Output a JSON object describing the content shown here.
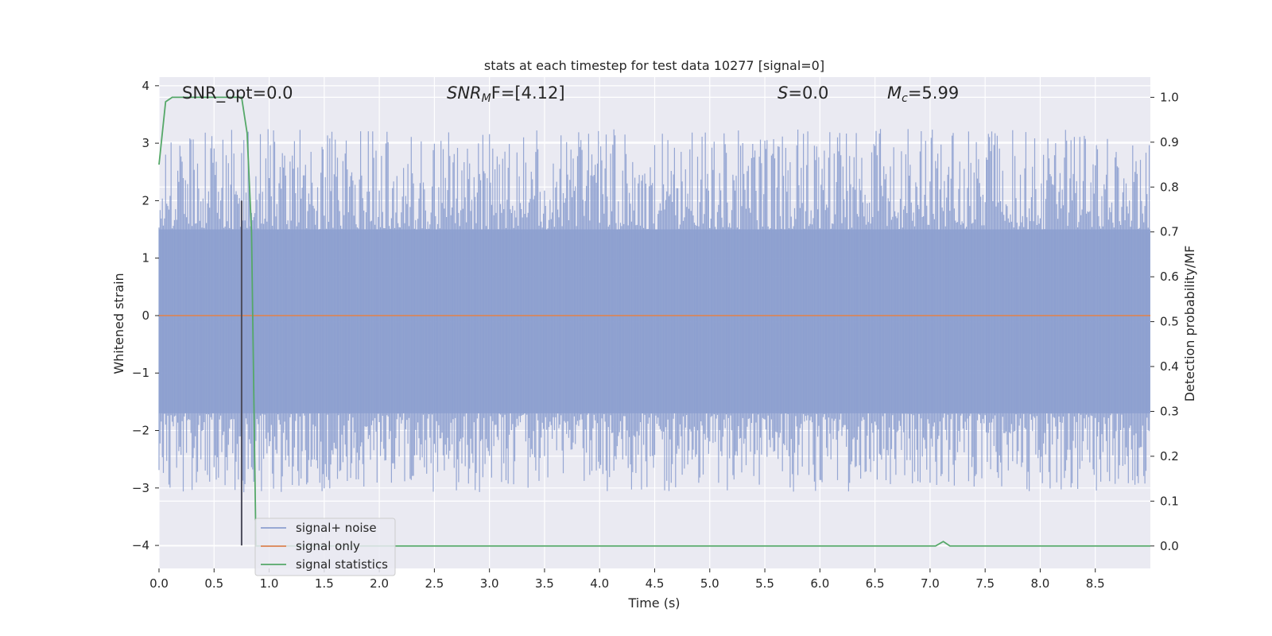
{
  "chart_data": {
    "type": "line",
    "title": "stats at each timestep for test data 10277 [signal=0]",
    "xlabel": "Time (s)",
    "ylabel_left": "Whitened strain",
    "ylabel_right": "Detection probability/MF",
    "xlim": [
      0.0,
      9.0
    ],
    "ylim_left": [
      -4.4,
      4.15
    ],
    "ylim_right": [
      -0.05,
      1.045
    ],
    "x_ticks": [
      "0.0",
      "0.5",
      "1.0",
      "1.5",
      "2.0",
      "2.5",
      "3.0",
      "3.5",
      "4.0",
      "4.5",
      "5.0",
      "5.5",
      "6.0",
      "6.5",
      "7.0",
      "7.5",
      "8.0",
      "8.5"
    ],
    "y_ticks_left": [
      "−4",
      "−3",
      "−2",
      "−1",
      "0",
      "1",
      "2",
      "3",
      "4"
    ],
    "y_ticks_right": [
      "0.0",
      "0.1",
      "0.2",
      "0.3",
      "0.4",
      "0.5",
      "0.6",
      "0.7",
      "0.8",
      "0.9",
      "1.0"
    ],
    "grid": true,
    "legend_position": "lower-left",
    "annotations": {
      "snr_opt": "SNR_opt=0.0",
      "snr_mf_italic": "SNR",
      "snr_mf_sub": "M",
      "snr_mf_rest": "F=[4.12]",
      "s_italic": "S",
      "s_rest": "=0.0",
      "mc_italic": "M",
      "mc_sub": "c",
      "mc_rest": "=5.99"
    },
    "vline_x": 0.75,
    "series": [
      {
        "name": "signal+ noise",
        "axis": "left",
        "color": "#8c9fcf",
        "description_envelope": {
          "dense_band": [
            -1.7,
            1.5
          ],
          "typical_peak": 2.9,
          "typical_trough": -2.8
        },
        "x": [
          0.0,
          9.0
        ],
        "y": [
          1.5,
          -1.7
        ]
      },
      {
        "name": "signal only",
        "axis": "left",
        "color": "#dd8452",
        "x": [
          0.0,
          9.0
        ],
        "y": [
          0.0,
          0.0
        ]
      },
      {
        "name": "signal statistics",
        "axis": "right",
        "color": "#55a868",
        "x": [
          0.0,
          0.06,
          0.12,
          0.3,
          0.5,
          0.72,
          0.75,
          0.8,
          0.84,
          0.88,
          7.05,
          7.12,
          7.18,
          7.25,
          9.0
        ],
        "y": [
          0.85,
          0.99,
          1.0,
          1.0,
          1.0,
          1.0,
          1.0,
          0.92,
          0.7,
          0.0,
          0.0,
          0.01,
          0.0,
          0.0,
          0.0
        ]
      }
    ]
  }
}
